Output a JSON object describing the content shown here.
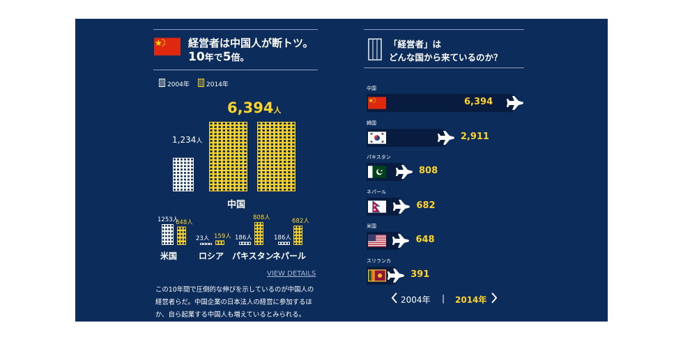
{
  "left": {
    "title_line1": "経営者は中国人が断トツ。",
    "title_line2_a": "10",
    "title_line2_b": "年で",
    "title_line2_c": "5",
    "title_line2_d": "倍。",
    "legend_2004": "2004年",
    "legend_2014": "2014年",
    "china_2014_value": "6,394",
    "china_2004_value": "1,234",
    "unit": "人",
    "china_label": "中国",
    "small_groups": [
      {
        "label": "米国",
        "v2004": "1253",
        "v2014": "648"
      },
      {
        "label": "ロシア",
        "v2004": "23",
        "v2014": "159"
      },
      {
        "label": "パキスタン",
        "v2004": "186",
        "v2014": "808"
      },
      {
        "label": "ネパール",
        "v2004": "186",
        "v2014": "682"
      }
    ],
    "view_details": "VIEW DETAILS",
    "desc_line1": "この10年間で圧倒的な伸びを示しているのが中国人の",
    "desc_line2": "経営者らだ。中国企業の日本法人の経営に参加するほ",
    "desc_line3": "か、自ら起業する中国人も増えているとみられる。"
  },
  "right": {
    "title_line1": "「経営者」は",
    "title_line2": "どんな国から来ているのか？",
    "nav_2004": "2004年",
    "nav_sep": "|",
    "nav_2014": "2014年"
  },
  "colors": {
    "background": "#0c2c5b",
    "accent_yellow": "#ffd42a",
    "white": "#ffffff",
    "bar_track": "#071c3f"
  },
  "chart_data": [
    {
      "type": "bar",
      "title": "経営者は中国人が断トツ。10年で5倍。",
      "categories": [
        "中国",
        "米国",
        "ロシア",
        "パキスタン",
        "ネパール"
      ],
      "series": [
        {
          "name": "2004年",
          "values": [
            1234,
            1253,
            23,
            186,
            186
          ]
        },
        {
          "name": "2014年",
          "values": [
            6394,
            648,
            159,
            808,
            682
          ]
        }
      ]
    },
    {
      "type": "bar",
      "title": "「経営者」はどんな国から来ているのか？",
      "year_selected": "2014年",
      "categories": [
        "中国",
        "韓国",
        "パキスタン",
        "ネパール",
        "米国",
        "スリランカ"
      ],
      "values": [
        6394,
        2911,
        808,
        682,
        648,
        391
      ],
      "value_labels": [
        "6,394",
        "2,911",
        "808",
        "682",
        "648",
        "391"
      ],
      "flags": [
        "cn",
        "kr",
        "pk",
        "np",
        "us",
        "lk"
      ]
    }
  ]
}
